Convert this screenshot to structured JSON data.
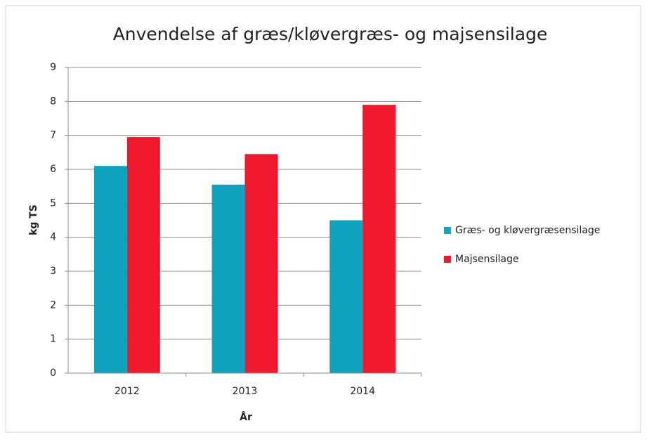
{
  "chart_data": {
    "type": "bar",
    "title": "Anvendelse af græs/kløvergræs- og majsensilage",
    "x_label": "År",
    "y_label": "kg TS",
    "categories": [
      "2012",
      "2013",
      "2014"
    ],
    "series": [
      {
        "name": "Græs- og kløvergræsensilage",
        "color": "#0fa3c0",
        "values": [
          6.1,
          5.55,
          4.5
        ]
      },
      {
        "name": "Majsensilage",
        "color": "#f0182c",
        "values": [
          6.95,
          6.45,
          7.9
        ]
      }
    ],
    "ylim": [
      0,
      9
    ],
    "yticks": [
      0,
      1,
      2,
      3,
      4,
      5,
      6,
      7,
      8,
      9
    ],
    "grid": true,
    "legend": "right"
  }
}
